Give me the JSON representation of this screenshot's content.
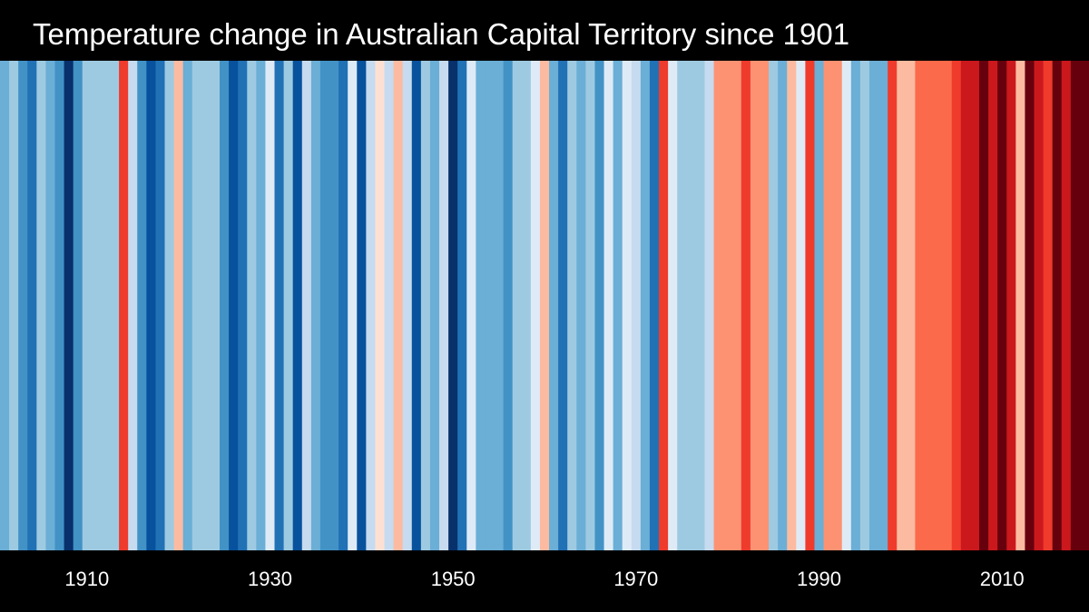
{
  "chart_data": {
    "type": "heatmap",
    "title": "Temperature change in Australian Capital Territory since 1901",
    "x_start": 1901,
    "x_end": 2019,
    "x_ticks": [
      "1910",
      "1930",
      "1950",
      "1970",
      "1990",
      "2010"
    ],
    "grid": false,
    "legend": "none",
    "stripe_colors": [
      "#6baed6",
      "#9ecae1",
      "#4292c6",
      "#2171b5",
      "#9ecae1",
      "#6baed6",
      "#4292c6",
      "#08306b",
      "#4292c6",
      "#9ecae1",
      "#9ecae1",
      "#9ecae1",
      "#9ecae1",
      "#ef3b2c",
      "#c6dbef",
      "#4292c6",
      "#08519c",
      "#2171b5",
      "#9ecae1",
      "#fcbba1",
      "#6baed6",
      "#9ecae1",
      "#9ecae1",
      "#9ecae1",
      "#4292c6",
      "#08519c",
      "#2171b5",
      "#9ecae1",
      "#6baed6",
      "#deebf7",
      "#2171b5",
      "#9ecae1",
      "#08519c",
      "#c6dbef",
      "#6baed6",
      "#4292c6",
      "#4292c6",
      "#2171b5",
      "#deebf7",
      "#08519c",
      "#c6dbef",
      "#fee0d2",
      "#c6dbef",
      "#fcbba1",
      "#c6dbef",
      "#08519c",
      "#9ecae1",
      "#6baed6",
      "#c6dbef",
      "#08306b",
      "#2171b5",
      "#deebf7",
      "#6baed6",
      "#6baed6",
      "#6baed6",
      "#4292c6",
      "#9ecae1",
      "#9ecae1",
      "#deebf7",
      "#fcbba1",
      "#6baed6",
      "#2171b5",
      "#9ecae1",
      "#6baed6",
      "#9ecae1",
      "#4292c6",
      "#deebf7",
      "#6baed6",
      "#deebf7",
      "#c6dbef",
      "#6baed6",
      "#2171b5",
      "#ef3b2c",
      "#deebf7",
      "#9ecae1",
      "#9ecae1",
      "#9ecae1",
      "#c6dbef",
      "#fc9272",
      "#fc9272",
      "#fc9272",
      "#ef3b2c",
      "#fc9272",
      "#fc9272",
      "#9ecae1",
      "#6baed6",
      "#fcbba1",
      "#deebf7",
      "#ef3b2c",
      "#6baed6",
      "#fc9272",
      "#fc9272",
      "#deebf7",
      "#6baed6",
      "#9ecae1",
      "#6baed6",
      "#6baed6",
      "#ef3b2c",
      "#fcbba1",
      "#fcbba1",
      "#fb6a4a",
      "#fb6a4a",
      "#fb6a4a",
      "#fb6a4a",
      "#ef3b2c",
      "#cb181d",
      "#cb181d",
      "#67000d",
      "#cb181d",
      "#67000d",
      "#cb181d",
      "#fcbba1",
      "#67000d",
      "#cb181d",
      "#ef3b2c",
      "#67000d",
      "#cb181d",
      "#67000d",
      "#67000d"
    ]
  }
}
